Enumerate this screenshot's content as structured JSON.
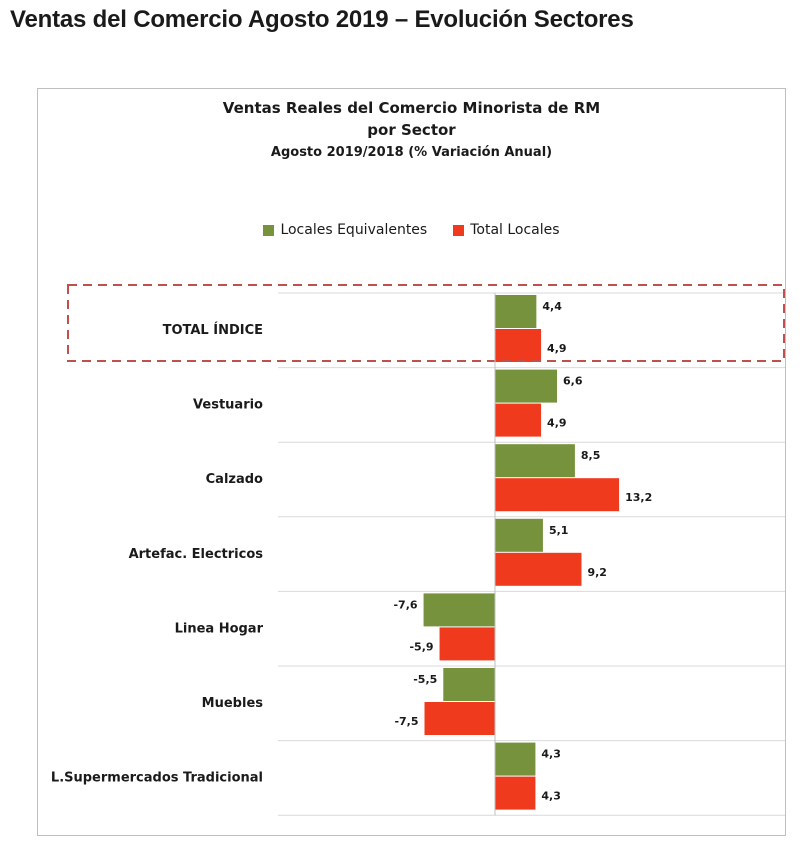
{
  "page": {
    "title": "Ventas del Comercio Agosto 2019 – Evolución Sectores"
  },
  "colors": {
    "locales_equivalentes": "#76923c",
    "total_locales": "#f03a1e",
    "highlight_border": "#c0504d"
  },
  "chart_data": {
    "type": "bar",
    "orientation": "horizontal",
    "title_line1": "Ventas Reales del Comercio Minorista de RM",
    "title_line2": "por Sector",
    "subtitle": "Agosto 2019/2018 (% Variación Anual)",
    "legend_position": "top",
    "categories": [
      "TOTAL ÍNDICE",
      "Vestuario",
      "Calzado",
      "Artefac. Electricos",
      "Linea Hogar",
      "Muebles",
      "L.Supermercados Tradicional"
    ],
    "highlighted_category": "TOTAL ÍNDICE",
    "series": [
      {
        "name": "Locales Equivalentes",
        "values": [
          4.4,
          6.6,
          8.5,
          5.1,
          -7.6,
          -5.5,
          4.3
        ],
        "labels": [
          "4,4",
          "6,6",
          "8,5",
          "5,1",
          "-7,6",
          "-5,5",
          "4,3"
        ]
      },
      {
        "name": "Total Locales",
        "values": [
          4.9,
          4.9,
          13.2,
          9.2,
          -5.9,
          -7.5,
          4.3
        ],
        "labels": [
          "4,9",
          "4,9",
          "13,2",
          "9,2",
          "-5,9",
          "-7,5",
          "4,3"
        ]
      }
    ],
    "xlim": [
      -15,
      15
    ]
  }
}
